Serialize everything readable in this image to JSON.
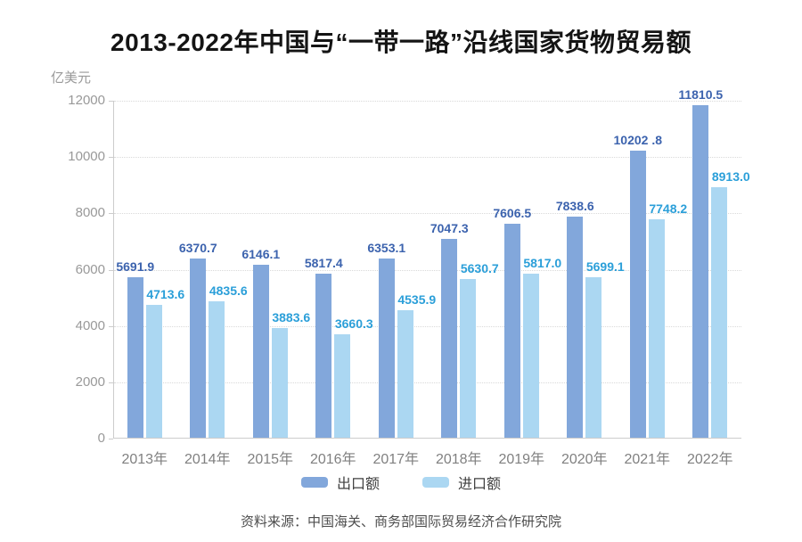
{
  "title": "2013-2022年中国与“一带一路”沿线国家货物贸易额",
  "y_axis_unit": "亿美元",
  "source": "资料来源：中国海关、商务部国际贸易经济合作研究院",
  "colors": {
    "export_bar": "#82A7DB",
    "import_bar": "#ABD7F2",
    "export_label": "#3C63AE",
    "import_label": "#2B9FD9",
    "axis": "#cccccc",
    "gridline": "#d9d9d9",
    "tick_text": "#999999"
  },
  "chart_data": {
    "type": "bar",
    "title": "2013-2022年中国与“一带一路”沿线国家货物贸易额",
    "ylabel": "亿美元",
    "xlabel": "",
    "ylim": [
      0,
      12000
    ],
    "yticks": [
      0,
      2000,
      4000,
      6000,
      8000,
      10000,
      12000
    ],
    "grid": "dotted-horizontal",
    "legend_position": "bottom",
    "categories": [
      "2013年",
      "2014年",
      "2015年",
      "2016年",
      "2017年",
      "2018年",
      "2019年",
      "2020年",
      "2021年",
      "2022年"
    ],
    "series": [
      {
        "name": "出口额",
        "color": "#82A7DB",
        "label_color": "#3C63AE",
        "values": [
          5691.9,
          6370.7,
          6146.1,
          5817.4,
          6353.1,
          7047.3,
          7606.5,
          7838.6,
          10202.8,
          11810.5
        ],
        "labels": [
          "5691.9",
          "6370.7",
          "6146.1",
          "5817.4",
          "6353.1",
          "7047.3",
          "7606.5",
          "7838.6",
          "10202 .8",
          "11810.5"
        ]
      },
      {
        "name": "进口额",
        "color": "#ABD7F2",
        "label_color": "#2B9FD9",
        "values": [
          4713.6,
          4835.6,
          3883.6,
          3660.3,
          4535.9,
          5630.7,
          5817.0,
          5699.1,
          7748.2,
          8913.0
        ],
        "labels": [
          "4713.6",
          "4835.6",
          "3883.6",
          "3660.3",
          "4535.9",
          "5630.7",
          "5817.0",
          "5699.1",
          "7748.2",
          "8913.0"
        ]
      }
    ]
  }
}
